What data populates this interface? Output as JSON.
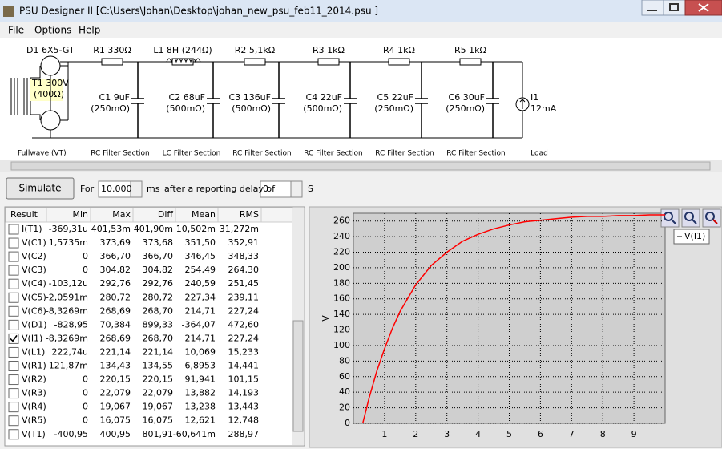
{
  "window": {
    "title": "PSU Designer II  [C:\\Users\\Johan\\Desktop\\johan_new_psu_feb11_2014.psu ]"
  },
  "menu": [
    "File",
    "Options",
    "Help"
  ],
  "schematic": {
    "rectifier": {
      "tube": "D1 6X5-GT",
      "transformer": "T1 300V",
      "transformer_resistance": "(400Ω)",
      "label": "Fullwave (VT)"
    },
    "sections": [
      {
        "series": "R1 330Ω",
        "cap": "C1 9uF",
        "cap_esr": "(250mΩ)",
        "label": "RC Filter Section"
      },
      {
        "series": "L1 8H (244Ω)",
        "cap": "C2 68uF",
        "cap_esr": "(500mΩ)",
        "label": "LC Filter Section"
      },
      {
        "series": "R2 5,1kΩ",
        "cap": "C3 136uF",
        "cap_esr": "(500mΩ)",
        "label": "RC Filter Section"
      },
      {
        "series": "R3 1kΩ",
        "cap": "C4 22uF",
        "cap_esr": "(500mΩ)",
        "label": "RC Filter Section"
      },
      {
        "series": "R4 1kΩ",
        "cap": "C5 22uF",
        "cap_esr": "(250mΩ)",
        "label": "RC Filter Section"
      },
      {
        "series": "R5 1kΩ",
        "cap": "C6 30uF",
        "cap_esr": "(250mΩ)",
        "label": "RC Filter Section"
      }
    ],
    "load": {
      "name": "I1",
      "current": "12mA",
      "label": "Load"
    }
  },
  "toolbar": {
    "button": "Simulate",
    "for": "For",
    "duration": "10.000",
    "unit": "ms",
    "delay_text": "after a reporting delay of",
    "delay": "0",
    "delay_unit": "S"
  },
  "table": {
    "columns": [
      "Result",
      "Min",
      "Max",
      "Diff",
      "Mean",
      "RMS"
    ],
    "rows": [
      {
        "checked": false,
        "cells": [
          "I(T1)",
          "-369,31u",
          "401,53m",
          "401,90m",
          "10,502m",
          "31,272m"
        ]
      },
      {
        "checked": false,
        "cells": [
          "V(C1)",
          "1,5735m",
          "373,69",
          "373,68",
          "351,50",
          "352,91"
        ]
      },
      {
        "checked": false,
        "cells": [
          "V(C2)",
          "0",
          "366,70",
          "366,70",
          "346,45",
          "348,33"
        ]
      },
      {
        "checked": false,
        "cells": [
          "V(C3)",
          "0",
          "304,82",
          "304,82",
          "254,49",
          "264,30"
        ]
      },
      {
        "checked": false,
        "cells": [
          "V(C4)",
          "-103,12u",
          "292,76",
          "292,76",
          "240,59",
          "251,45"
        ]
      },
      {
        "checked": false,
        "cells": [
          "V(C5)",
          "-2,0591m",
          "280,72",
          "280,72",
          "227,34",
          "239,11"
        ]
      },
      {
        "checked": false,
        "cells": [
          "V(C6)",
          "-8,3269m",
          "268,69",
          "268,70",
          "214,71",
          "227,24"
        ]
      },
      {
        "checked": false,
        "cells": [
          "V(D1)",
          "-828,95",
          "70,384",
          "899,33",
          "-364,07",
          "472,60"
        ]
      },
      {
        "checked": true,
        "cells": [
          "V(I1)",
          "-8,3269m",
          "268,69",
          "268,70",
          "214,71",
          "227,24"
        ]
      },
      {
        "checked": false,
        "cells": [
          "V(L1)",
          "222,74u",
          "221,14",
          "221,14",
          "10,069",
          "15,233"
        ]
      },
      {
        "checked": false,
        "cells": [
          "V(R1)",
          "-121,87m",
          "134,43",
          "134,55",
          "6,8953",
          "14,441"
        ]
      },
      {
        "checked": false,
        "cells": [
          "V(R2)",
          "0",
          "220,15",
          "220,15",
          "91,941",
          "101,15"
        ]
      },
      {
        "checked": false,
        "cells": [
          "V(R3)",
          "0",
          "22,079",
          "22,079",
          "13,882",
          "14,193"
        ]
      },
      {
        "checked": false,
        "cells": [
          "V(R4)",
          "0",
          "19,067",
          "19,067",
          "13,238",
          "13,443"
        ]
      },
      {
        "checked": false,
        "cells": [
          "V(R5)",
          "0",
          "16,075",
          "16,075",
          "12,621",
          "12,748"
        ]
      },
      {
        "checked": false,
        "cells": [
          "V(T1)",
          "-400,95",
          "400,95",
          "801,91",
          "-60,641m",
          "288,97"
        ]
      }
    ]
  },
  "chart_data": {
    "type": "line",
    "ylabel": "V",
    "xlim": [
      0,
      10
    ],
    "ylim": [
      0,
      270
    ],
    "xticks": [
      1,
      2,
      3,
      4,
      5,
      6,
      7,
      8,
      9
    ],
    "yticks": [
      0,
      20,
      40,
      60,
      80,
      100,
      120,
      140,
      160,
      180,
      200,
      220,
      240,
      260
    ],
    "grid": true,
    "series": [
      {
        "name": "V(I1)",
        "color": "#ff0000",
        "x": [
          0.3,
          0.5,
          0.75,
          1,
          1.25,
          1.5,
          2,
          2.5,
          3,
          3.5,
          4,
          4.5,
          5,
          5.5,
          6,
          6.5,
          7,
          7.5,
          8,
          8.5,
          9,
          9.5,
          10
        ],
        "values": [
          0,
          32,
          67,
          96,
          122,
          144,
          178,
          203,
          220,
          234,
          243,
          250,
          255,
          259,
          261,
          263,
          265,
          266,
          266,
          267,
          267,
          268,
          268
        ]
      }
    ]
  }
}
